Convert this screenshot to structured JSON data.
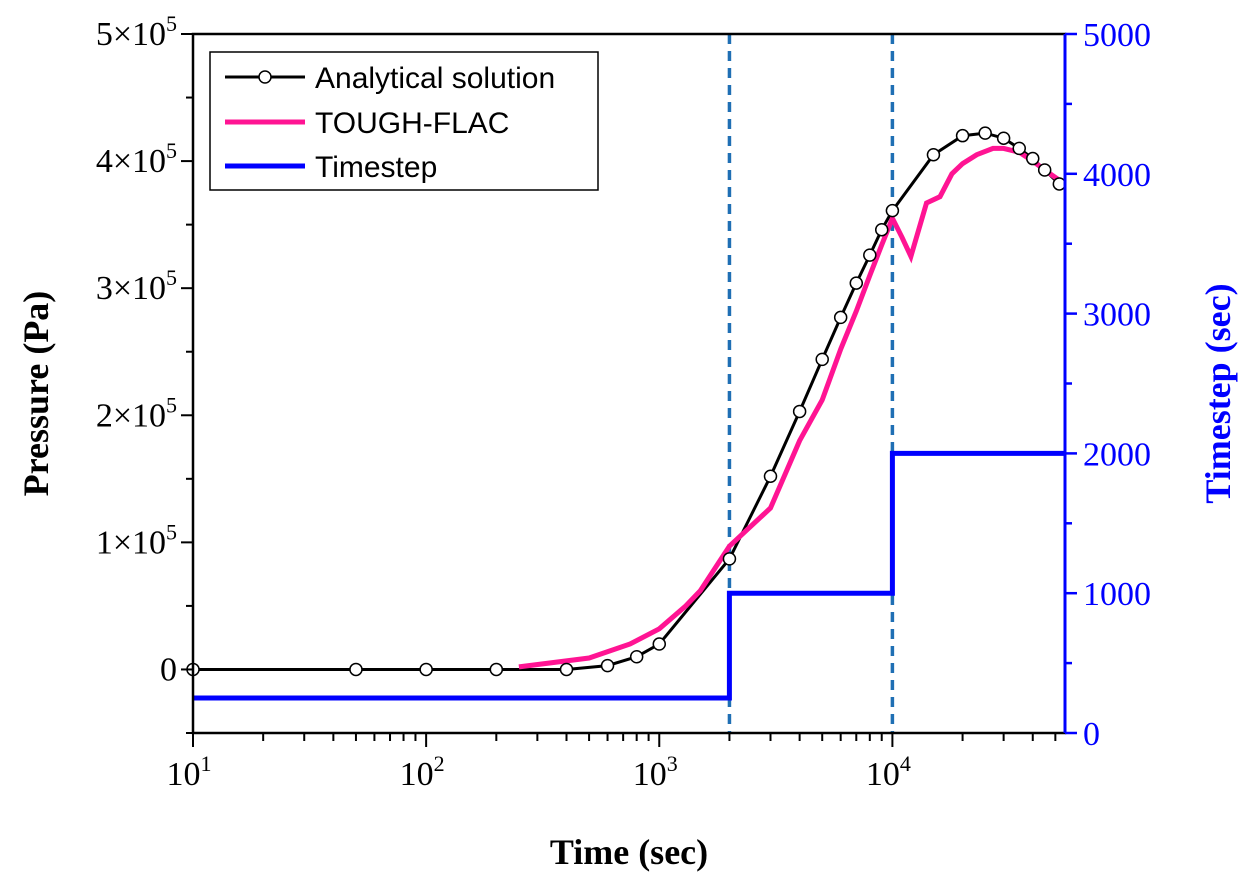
{
  "chart_data": {
    "type": "line",
    "title": "",
    "xlabel": "Time (sec)",
    "ylabel": "Pressure (Pa)",
    "y2label": "Timestep (sec)",
    "xscale": "log",
    "xlim": [
      10,
      55000
    ],
    "ylim": [
      -50000,
      500000
    ],
    "y2lim": [
      0,
      5000
    ],
    "x_ticks": [
      {
        "value": 10,
        "base": "10",
        "exp": "1"
      },
      {
        "value": 100,
        "base": "10",
        "exp": "2"
      },
      {
        "value": 1000,
        "base": "10",
        "exp": "3"
      },
      {
        "value": 10000,
        "base": "10",
        "exp": "4"
      }
    ],
    "y_ticks": [
      {
        "value": 0,
        "mant": "0",
        "exp": ""
      },
      {
        "value": 100000,
        "mant": "1×10",
        "exp": "5"
      },
      {
        "value": 200000,
        "mant": "2×10",
        "exp": "5"
      },
      {
        "value": 300000,
        "mant": "3×10",
        "exp": "5"
      },
      {
        "value": 400000,
        "mant": "4×10",
        "exp": "5"
      },
      {
        "value": 500000,
        "mant": "5×10",
        "exp": "5"
      }
    ],
    "y2_ticks": [
      "0",
      "1000",
      "2000",
      "3000",
      "4000",
      "5000"
    ],
    "vlines": [
      2000,
      10000
    ],
    "legend": {
      "position": "top-left",
      "entries": [
        "Analytical solution",
        "TOUGH-FLAC",
        "Timestep"
      ]
    },
    "series": [
      {
        "name": "Analytical solution",
        "axis": "left",
        "color": "#000000",
        "marker": "open-circle",
        "x": [
          10,
          50,
          100,
          200,
          400,
          600,
          800,
          1000,
          2000,
          3000,
          4000,
          5000,
          6000,
          7000,
          8000,
          9000,
          10000,
          15000,
          20000,
          25000,
          30000,
          35000,
          40000,
          45000,
          52000
        ],
        "y": [
          0,
          0,
          0,
          0,
          0,
          3000,
          10000,
          20000,
          87000,
          152000,
          203000,
          244000,
          277000,
          304000,
          326000,
          346000,
          361000,
          405000,
          420000,
          422000,
          418000,
          410000,
          402000,
          393000,
          382000
        ]
      },
      {
        "name": "TOUGH-FLAC",
        "axis": "left",
        "color": "#ff1493",
        "marker": "none",
        "x": [
          250,
          500,
          750,
          1000,
          1300,
          1500,
          2000,
          3000,
          4000,
          5000,
          6000,
          7000,
          8000,
          9000,
          10000,
          11000,
          12000,
          14000,
          16000,
          18000,
          20000,
          23000,
          27000,
          30000,
          35000,
          40000,
          45000,
          52000
        ],
        "y": [
          2000,
          9000,
          20000,
          32000,
          50000,
          62000,
          97000,
          127000,
          180000,
          212000,
          252000,
          282000,
          310000,
          334000,
          355000,
          340000,
          325000,
          367000,
          372000,
          390000,
          398000,
          405000,
          410000,
          410000,
          407000,
          400000,
          393000,
          385000
        ]
      },
      {
        "name": "Timestep",
        "axis": "right",
        "color": "#0000ff",
        "marker": "none",
        "x": [
          10,
          2000,
          2000,
          10000,
          10000,
          55000
        ],
        "y": [
          250,
          250,
          1000,
          1000,
          2000,
          2000
        ]
      }
    ]
  }
}
